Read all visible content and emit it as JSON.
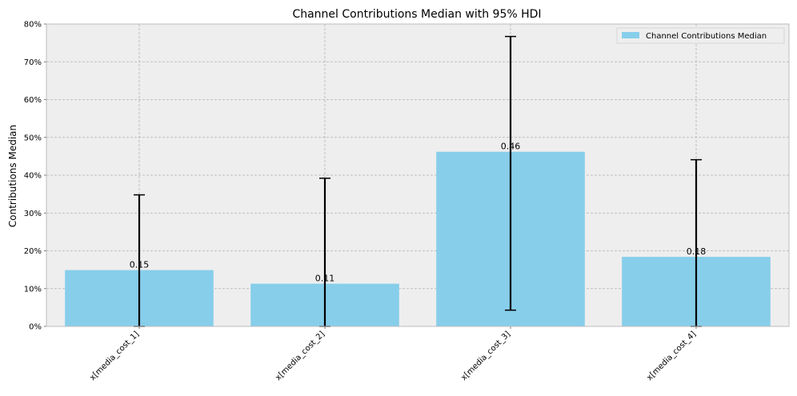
{
  "chart_data": {
    "type": "bar",
    "title": "Channel Contributions Median with 95% HDI",
    "xlabel": "",
    "ylabel": "Contributions Median",
    "categories": [
      "x[media_cost_1]",
      "x[media_cost_2]",
      "x[media_cost_3]",
      "x[media_cost_4]"
    ],
    "series": [
      {
        "name": "Channel Contributions Median",
        "values": [
          0.149,
          0.113,
          0.462,
          0.184
        ],
        "labels": [
          "0.15",
          "0.11",
          "0.46",
          "0.18"
        ],
        "hdi_low": [
          0.0,
          0.0,
          0.043,
          0.0
        ],
        "hdi_high": [
          0.348,
          0.392,
          0.767,
          0.441
        ],
        "color": "#87ceeb"
      }
    ],
    "ylim": [
      0,
      0.8
    ],
    "yticks": [
      0,
      0.1,
      0.2,
      0.3,
      0.4,
      0.5,
      0.6,
      0.7,
      0.8
    ],
    "ytick_labels": [
      "0%",
      "10%",
      "20%",
      "30%",
      "40%",
      "50%",
      "60%",
      "70%",
      "80%"
    ],
    "grid": true,
    "legend": "top-right",
    "background": "#eeeeee",
    "errorbar_color": "#000000"
  }
}
